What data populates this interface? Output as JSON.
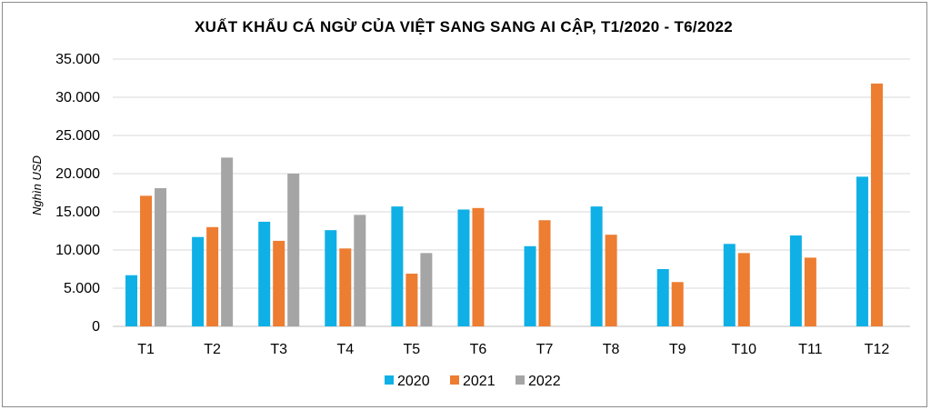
{
  "chart_data": {
    "type": "bar",
    "title": "XUẤT KHẨU CÁ NGỪ CỦA VIỆT SANG SANG AI CẬP, T1/2020  - T6/2022",
    "ylabel": "Nghìn USD",
    "xlabel": "",
    "categories": [
      "T1",
      "T2",
      "T3",
      "T4",
      "T5",
      "T6",
      "T7",
      "T8",
      "T9",
      "T10",
      "T11",
      "T12"
    ],
    "series": [
      {
        "name": "2020",
        "color": "#0fb0e6",
        "values": [
          6700,
          11700,
          13700,
          12600,
          15700,
          15300,
          10500,
          15700,
          7500,
          10800,
          11900,
          19600
        ]
      },
      {
        "name": "2021",
        "color": "#ed7d31",
        "values": [
          17100,
          13000,
          11200,
          10200,
          6900,
          15500,
          13900,
          12000,
          5800,
          9600,
          9000,
          31800
        ]
      },
      {
        "name": "2022",
        "color": "#a5a5a5",
        "values": [
          18100,
          22100,
          20000,
          14600,
          9600,
          null,
          null,
          null,
          null,
          null,
          null,
          null
        ]
      }
    ],
    "ylim": [
      0,
      35000
    ],
    "yticks": [
      0,
      5000,
      10000,
      15000,
      20000,
      25000,
      30000,
      35000
    ],
    "ytick_labels": [
      "0",
      "5.000",
      "10.000",
      "15.000",
      "20.000",
      "25.000",
      "30.000",
      "35.000"
    ],
    "grid": true,
    "legend_position": "bottom"
  }
}
